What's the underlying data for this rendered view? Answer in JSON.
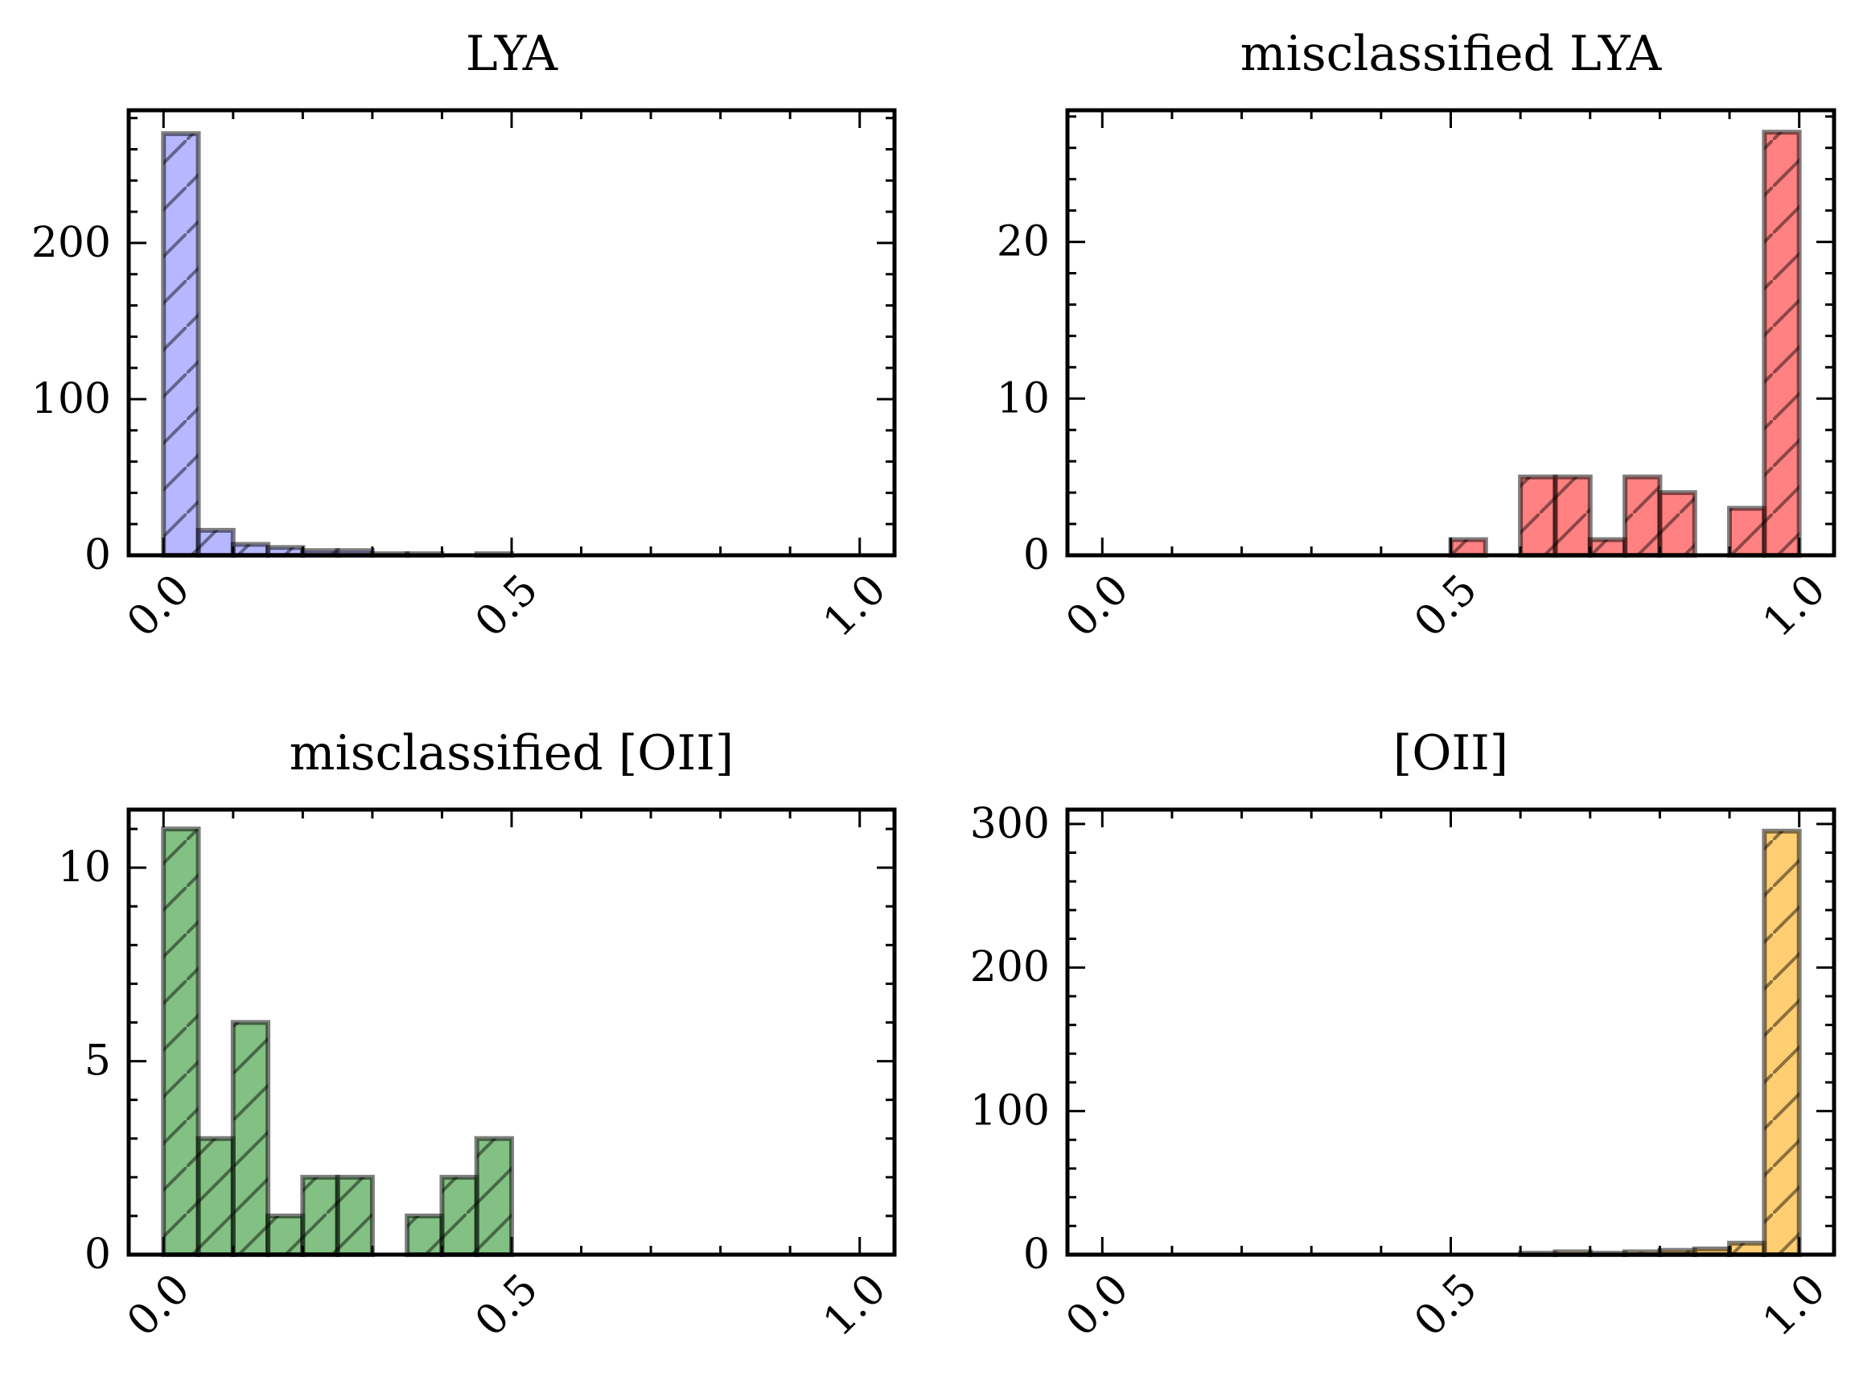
{
  "chart_data": [
    {
      "type": "bar",
      "title": "LYA",
      "xlabel": "",
      "ylabel": "",
      "xlim": [
        -0.05,
        1.05
      ],
      "ylim": [
        0,
        285
      ],
      "xticks": [
        0.0,
        0.5,
        1.0
      ],
      "xtick_labels": [
        "0.0",
        "0.5",
        "1.0"
      ],
      "yticks": [
        0,
        100,
        200
      ],
      "ytick_labels": [
        "0",
        "100",
        "200"
      ],
      "yminor_step": 20,
      "bin_edges": [
        0.0,
        0.05,
        0.1,
        0.15,
        0.2,
        0.25,
        0.3,
        0.35,
        0.4,
        0.45,
        0.5,
        0.55,
        0.6,
        0.65,
        0.7,
        0.75,
        0.8,
        0.85,
        0.9,
        0.95,
        1.0
      ],
      "values": [
        270,
        16,
        7,
        5,
        3,
        3,
        1,
        1,
        0,
        1,
        0,
        0,
        0,
        0,
        0,
        0,
        0,
        0,
        0,
        0
      ],
      "color": "#7b7bff",
      "grid": false
    },
    {
      "type": "bar",
      "title": "misclassified LYA",
      "xlabel": "",
      "ylabel": "",
      "xlim": [
        -0.05,
        1.05
      ],
      "ylim": [
        0,
        28.4
      ],
      "xticks": [
        0.0,
        0.5,
        1.0
      ],
      "xtick_labels": [
        "0.0",
        "0.5",
        "1.0"
      ],
      "yticks": [
        0,
        10,
        20
      ],
      "ytick_labels": [
        "0",
        "10",
        "20"
      ],
      "yminor_step": 2,
      "bin_edges": [
        0.0,
        0.05,
        0.1,
        0.15,
        0.2,
        0.25,
        0.3,
        0.35,
        0.4,
        0.45,
        0.5,
        0.55,
        0.6,
        0.65,
        0.7,
        0.75,
        0.8,
        0.85,
        0.9,
        0.95,
        1.0
      ],
      "values": [
        0,
        0,
        0,
        0,
        0,
        0,
        0,
        0,
        0,
        0,
        1,
        0,
        5,
        5,
        1,
        5,
        4,
        0,
        3,
        27
      ],
      "color": "#ff1a1a",
      "grid": false
    },
    {
      "type": "bar",
      "title": "misclassified [OII]",
      "xlabel": "",
      "ylabel": "",
      "xlim": [
        -0.05,
        1.05
      ],
      "ylim": [
        0,
        11.5
      ],
      "xticks": [
        0.0,
        0.5,
        1.0
      ],
      "xtick_labels": [
        "0.0",
        "0.5",
        "1.0"
      ],
      "yticks": [
        0,
        5,
        10
      ],
      "ytick_labels": [
        "0",
        "5",
        "10"
      ],
      "yminor_step": 1,
      "bin_edges": [
        0.0,
        0.05,
        0.1,
        0.15,
        0.2,
        0.25,
        0.3,
        0.35,
        0.4,
        0.45,
        0.5,
        0.55,
        0.6,
        0.65,
        0.7,
        0.75,
        0.8,
        0.85,
        0.9,
        0.95,
        1.0
      ],
      "values": [
        11,
        3,
        6,
        1,
        2,
        2,
        0,
        1,
        2,
        3,
        0,
        0,
        0,
        0,
        0,
        0,
        0,
        0,
        0,
        0
      ],
      "color": "#1e8c1e",
      "grid": false
    },
    {
      "type": "bar",
      "title": "[OII]",
      "xlabel": "",
      "ylabel": "",
      "xlim": [
        -0.05,
        1.05
      ],
      "ylim": [
        0,
        310
      ],
      "xticks": [
        0.0,
        0.5,
        1.0
      ],
      "xtick_labels": [
        "0.0",
        "0.5",
        "1.0"
      ],
      "yticks": [
        0,
        100,
        200,
        300
      ],
      "ytick_labels": [
        "0",
        "100",
        "200",
        "300"
      ],
      "yminor_step": 20,
      "bin_edges": [
        0.0,
        0.05,
        0.1,
        0.15,
        0.2,
        0.25,
        0.3,
        0.35,
        0.4,
        0.45,
        0.5,
        0.55,
        0.6,
        0.65,
        0.7,
        0.75,
        0.8,
        0.85,
        0.9,
        0.95,
        1.0
      ],
      "values": [
        0,
        0,
        0,
        0,
        0,
        0,
        0,
        0,
        0,
        0,
        0,
        0,
        1,
        2,
        1,
        2,
        3,
        4,
        8,
        295
      ],
      "color": "#ffa500",
      "grid": false
    }
  ]
}
